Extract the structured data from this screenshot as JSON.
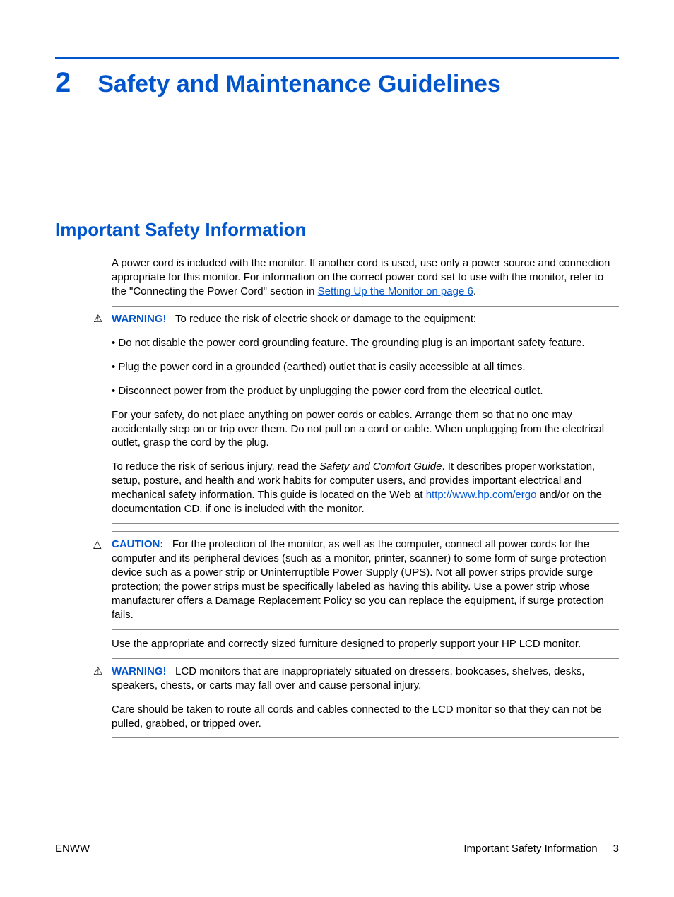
{
  "colors": {
    "accent": "#0055cc",
    "text": "#000000",
    "rule": "#888888",
    "background": "#ffffff"
  },
  "chapter": {
    "number": "2",
    "title": "Safety and Maintenance Guidelines"
  },
  "section": {
    "heading": "Important Safety Information"
  },
  "intro": {
    "text_before_link": "A power cord is included with the monitor. If another cord is used, use only a power source and connection appropriate for this monitor. For information on the correct power cord set to use with the monitor, refer to the \"Connecting the Power Cord\" section in ",
    "link_text": "Setting Up the Monitor on page 6",
    "text_after_link": "."
  },
  "warning1": {
    "label": "WARNING!",
    "lead": "To reduce the risk of electric shock or damage to the equipment:",
    "bullets": [
      "• Do not disable the power cord grounding feature. The grounding plug is an important safety feature.",
      "• Plug the power cord in a grounded (earthed) outlet that is easily accessible at all times.",
      "• Disconnect power from the product by unplugging the power cord from the electrical outlet."
    ],
    "para1": "For your safety, do not place anything on power cords or cables. Arrange them so that no one may accidentally step on or trip over them. Do not pull on a cord or cable. When unplugging from the electrical outlet, grasp the cord by the plug.",
    "para2_before_italic": "To reduce the risk of serious injury, read the ",
    "para2_italic": "Safety and Comfort Guide",
    "para2_after_italic": ". It describes proper workstation, setup, posture, and health and work habits for computer users, and provides important electrical and mechanical safety information. This guide is located on the Web at ",
    "para2_link": "http://www.hp.com/ergo",
    "para2_tail": " and/or on the documentation CD, if one is included with the monitor."
  },
  "caution": {
    "label": "CAUTION:",
    "text": "For the protection of the monitor, as well as the computer, connect all power cords for the computer and its peripheral devices (such as a monitor, printer, scanner) to some form of surge protection device such as a power strip or Uninterruptible Power Supply (UPS). Not all power strips provide surge protection; the power strips must be specifically labeled as having this ability. Use a power strip whose manufacturer offers a Damage Replacement Policy so you can replace the equipment, if surge protection fails."
  },
  "mid_text": "Use the appropriate and correctly sized furniture designed to properly support your HP LCD monitor.",
  "warning2": {
    "label": "WARNING!",
    "para1": "LCD monitors that are inappropriately situated on dressers, bookcases, shelves, desks, speakers, chests, or carts may fall over and cause personal injury.",
    "para2": "Care should be taken to route all cords and cables connected to the LCD monitor so that they can not be pulled, grabbed, or tripped over."
  },
  "footer": {
    "left": "ENWW",
    "right_label": "Important Safety Information",
    "page_number": "3"
  },
  "icons": {
    "warning": "⚠",
    "caution": "△"
  }
}
